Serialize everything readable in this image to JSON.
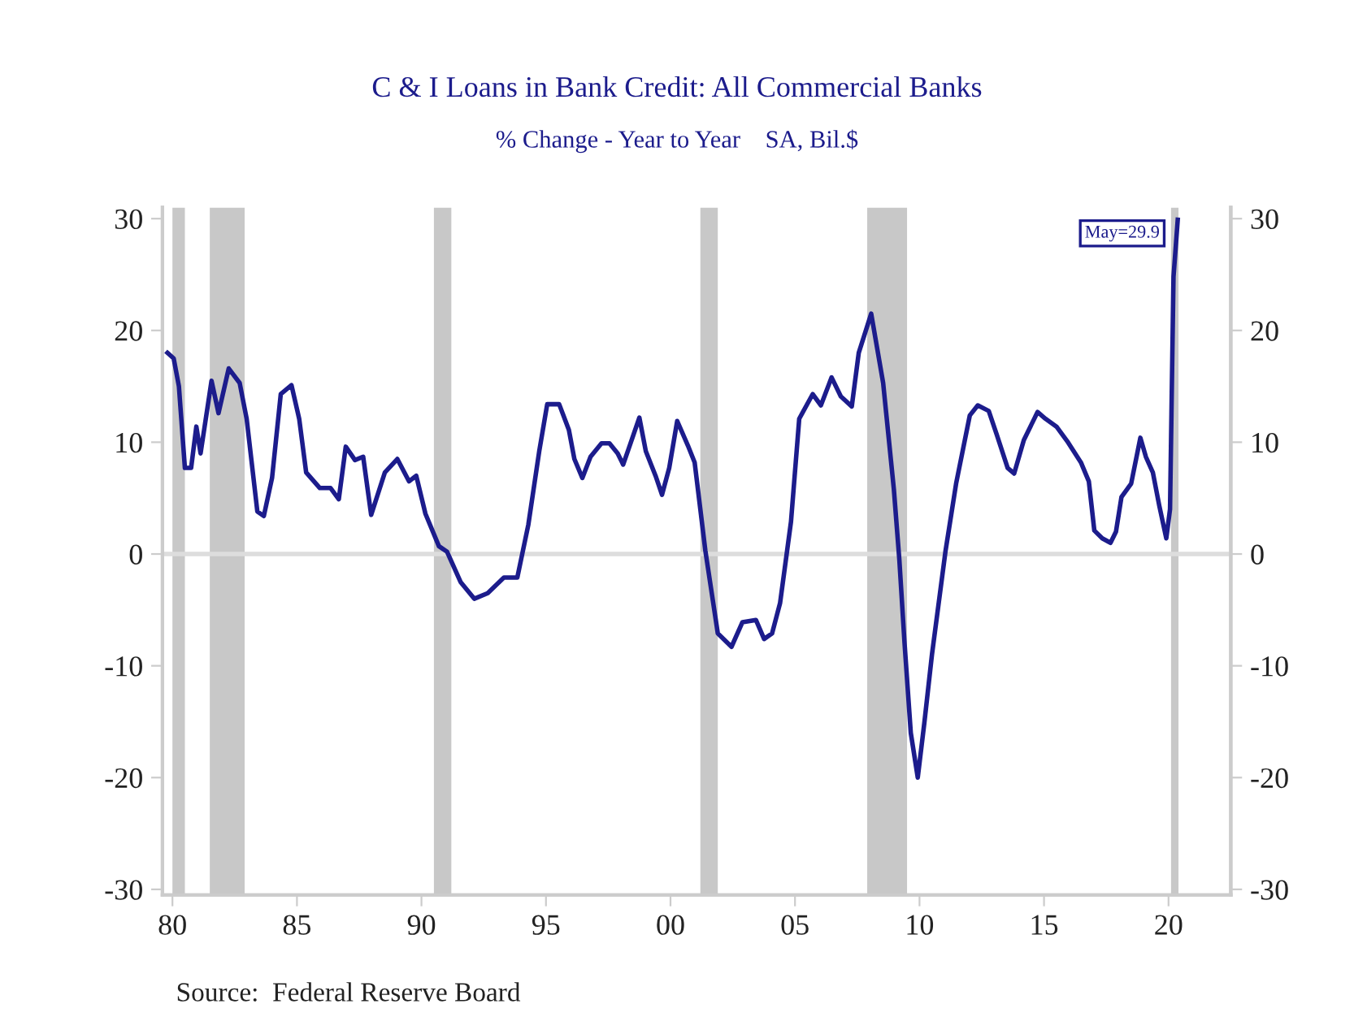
{
  "chart_data": {
    "type": "line",
    "title": "C & I Loans in Bank Credit: All Commercial Banks",
    "subtitle": "% Change - Year to Year    SA, Bil.$",
    "x": [
      1979.8,
      1980.05,
      1980.26,
      1980.5,
      1980.75,
      1980.96,
      1981.13,
      1981.57,
      1981.85,
      1982.26,
      1982.7,
      1982.98,
      1983.41,
      1983.67,
      1984.0,
      1984.35,
      1984.78,
      1985.09,
      1985.37,
      1985.92,
      1986.35,
      1986.68,
      1986.96,
      1987.33,
      1987.66,
      1987.98,
      1988.53,
      1989.03,
      1989.5,
      1989.79,
      1990.16,
      1990.7,
      1991.03,
      1991.57,
      1992.12,
      1992.66,
      1993.31,
      1993.85,
      1994.29,
      1994.73,
      1995.05,
      1995.53,
      1995.92,
      1996.14,
      1996.46,
      1996.79,
      1997.23,
      1997.55,
      1997.88,
      1998.1,
      1998.38,
      1998.75,
      1999.01,
      1999.4,
      1999.66,
      1999.95,
      2000.27,
      2000.7,
      2000.97,
      2001.4,
      2001.9,
      2002.45,
      2002.89,
      2003.43,
      2003.76,
      2004.08,
      2004.4,
      2004.84,
      2005.17,
      2005.71,
      2006.04,
      2006.47,
      2006.84,
      2007.28,
      2007.56,
      2008.06,
      2008.54,
      2008.97,
      2009.19,
      2009.4,
      2009.65,
      2009.93,
      2010.2,
      2010.5,
      2011.04,
      2011.47,
      2012.02,
      2012.34,
      2012.78,
      2013.1,
      2013.54,
      2013.8,
      2014.19,
      2014.74,
      2015.06,
      2015.5,
      2015.93,
      2016.48,
      2016.8,
      2017.02,
      2017.34,
      2017.67,
      2017.89,
      2018.11,
      2018.5,
      2018.87,
      2019.09,
      2019.37,
      2019.63,
      2019.91,
      2020.06,
      2020.2,
      2020.37
    ],
    "series": [
      {
        "color": "#1c1c8c",
        "values": [
          18.0,
          17.5,
          15.0,
          7.7,
          7.7,
          11.4,
          9.0,
          15.5,
          12.6,
          16.6,
          15.3,
          12.1,
          3.8,
          3.4,
          6.8,
          14.3,
          15.1,
          12.1,
          7.3,
          5.9,
          5.9,
          4.9,
          9.6,
          8.4,
          8.7,
          3.5,
          7.3,
          8.5,
          6.5,
          7.0,
          3.6,
          0.7,
          0.2,
          -2.5,
          -4.0,
          -3.5,
          -2.1,
          -2.1,
          2.6,
          9.2,
          13.4,
          13.4,
          11.1,
          8.5,
          6.8,
          8.7,
          9.9,
          9.9,
          9.0,
          8.0,
          9.8,
          12.2,
          9.2,
          7.0,
          5.3,
          7.7,
          11.9,
          9.7,
          8.2,
          0.3,
          -7.1,
          -8.3,
          -6.1,
          -5.9,
          -7.6,
          -7.1,
          -4.4,
          2.9,
          12.1,
          14.3,
          13.3,
          15.8,
          14.1,
          13.2,
          18.0,
          21.5,
          15.3,
          5.8,
          -0.5,
          -8.0,
          -16.0,
          -20.0,
          -15.0,
          -9.0,
          0.2,
          6.3,
          12.4,
          13.3,
          12.8,
          10.7,
          7.7,
          7.2,
          10.2,
          12.7,
          12.1,
          11.4,
          10.1,
          8.2,
          6.5,
          2.1,
          1.4,
          1.0,
          2.0,
          5.1,
          6.3,
          10.4,
          8.7,
          7.3,
          4.3,
          1.4,
          4.0,
          24.8,
          29.9
        ]
      }
    ],
    "xlim": [
      1979.6,
      2022.5
    ],
    "ylim": [
      -30.5,
      31
    ],
    "y2lim": [
      -30.5,
      31
    ],
    "xticks": [
      {
        "value": 1980,
        "label": "80"
      },
      {
        "value": 1985,
        "label": "85"
      },
      {
        "value": 1990,
        "label": "90"
      },
      {
        "value": 1995,
        "label": "95"
      },
      {
        "value": 2000,
        "label": "00"
      },
      {
        "value": 2005,
        "label": "05"
      },
      {
        "value": 2010,
        "label": "10"
      },
      {
        "value": 2015,
        "label": "15"
      },
      {
        "value": 2020,
        "label": "20"
      }
    ],
    "yticks": [
      -30,
      -20,
      -10,
      0,
      10,
      20,
      30
    ],
    "y2ticks": [
      -30,
      -20,
      -10,
      0,
      10,
      20,
      30
    ],
    "ref_lines": [
      {
        "axis": "y",
        "value": 0,
        "color": "#dddddd"
      }
    ],
    "bands": [
      {
        "axis": "x",
        "from": 1980.0,
        "to": 1980.5,
        "color": "#c8c8c8"
      },
      {
        "axis": "x",
        "from": 1981.5,
        "to": 1982.9,
        "color": "#c8c8c8"
      },
      {
        "axis": "x",
        "from": 1990.5,
        "to": 1991.2,
        "color": "#c8c8c8"
      },
      {
        "axis": "x",
        "from": 2001.2,
        "to": 2001.9,
        "color": "#c8c8c8"
      },
      {
        "axis": "x",
        "from": 2007.9,
        "to": 2009.5,
        "color": "#c8c8c8"
      },
      {
        "axis": "x",
        "from": 2020.1,
        "to": 2020.4,
        "color": "#c8c8c8"
      }
    ],
    "annotations": [
      {
        "text": "May=29.9",
        "x": 2020.37,
        "y": 29.9
      },
      "Source:  Federal Reserve Board"
    ],
    "grid": false,
    "legend": false
  }
}
